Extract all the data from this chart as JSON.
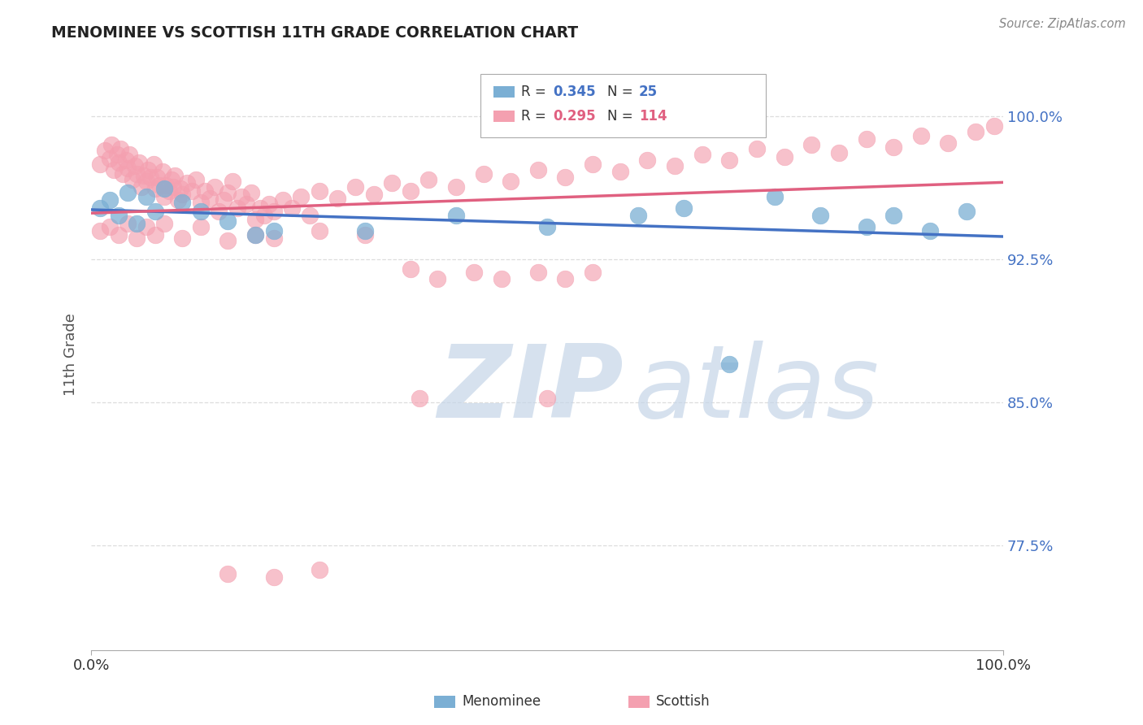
{
  "title": "MENOMINEE VS SCOTTISH 11TH GRADE CORRELATION CHART",
  "source_text": "Source: ZipAtlas.com",
  "ylabel": "11th Grade",
  "xlim": [
    0.0,
    1.0
  ],
  "ylim": [
    0.72,
    1.03
  ],
  "yticks": [
    0.775,
    0.85,
    0.925,
    1.0
  ],
  "ytick_labels": [
    "77.5%",
    "85.0%",
    "92.5%",
    "100.0%"
  ],
  "menominee_R": 0.345,
  "menominee_N": 25,
  "scottish_R": 0.295,
  "scottish_N": 114,
  "menominee_color": "#7BAFD4",
  "scottish_color": "#F4A0B0",
  "menominee_line_color": "#4472C4",
  "scottish_line_color": "#E06080",
  "watermark_zip": "ZIP",
  "watermark_atlas": "atlas",
  "watermark_color_zip": "#C5D5E8",
  "watermark_color_atlas": "#C5D5E8",
  "background_color": "#FFFFFF",
  "grid_color": "#DDDDDD",
  "title_color": "#222222",
  "axis_label_color": "#555555",
  "right_tick_color": "#4472C4",
  "source_color": "#888888",
  "legend_text_color": "#333333",
  "menominee_x": [
    0.01,
    0.02,
    0.03,
    0.04,
    0.05,
    0.06,
    0.07,
    0.08,
    0.1,
    0.12,
    0.15,
    0.18,
    0.2,
    0.3,
    0.4,
    0.5,
    0.6,
    0.65,
    0.7,
    0.75,
    0.8,
    0.85,
    0.88,
    0.92,
    0.96
  ],
  "menominee_y": [
    0.952,
    0.956,
    0.948,
    0.96,
    0.944,
    0.958,
    0.95,
    0.962,
    0.955,
    0.95,
    0.945,
    0.938,
    0.94,
    0.94,
    0.948,
    0.942,
    0.948,
    0.952,
    0.87,
    0.958,
    0.948,
    0.942,
    0.948,
    0.94,
    0.95
  ],
  "scottish_x": [
    0.01,
    0.015,
    0.02,
    0.022,
    0.025,
    0.028,
    0.03,
    0.032,
    0.035,
    0.038,
    0.04,
    0.042,
    0.045,
    0.048,
    0.05,
    0.052,
    0.055,
    0.058,
    0.06,
    0.062,
    0.065,
    0.068,
    0.07,
    0.072,
    0.075,
    0.078,
    0.08,
    0.082,
    0.085,
    0.088,
    0.09,
    0.092,
    0.095,
    0.098,
    0.1,
    0.105,
    0.11,
    0.115,
    0.12,
    0.125,
    0.13,
    0.135,
    0.14,
    0.145,
    0.15,
    0.155,
    0.16,
    0.165,
    0.17,
    0.175,
    0.18,
    0.185,
    0.19,
    0.195,
    0.2,
    0.21,
    0.22,
    0.23,
    0.24,
    0.25,
    0.27,
    0.29,
    0.31,
    0.33,
    0.35,
    0.37,
    0.4,
    0.43,
    0.46,
    0.49,
    0.52,
    0.55,
    0.58,
    0.61,
    0.64,
    0.67,
    0.7,
    0.73,
    0.76,
    0.79,
    0.82,
    0.85,
    0.88,
    0.91,
    0.94,
    0.97,
    0.99,
    0.01,
    0.02,
    0.03,
    0.04,
    0.05,
    0.06,
    0.07,
    0.08,
    0.1,
    0.12,
    0.15,
    0.18,
    0.2,
    0.25,
    0.3,
    0.35,
    0.38,
    0.42,
    0.45,
    0.49,
    0.52,
    0.55,
    0.36,
    0.5,
    0.15,
    0.2,
    0.25
  ],
  "scottish_y": [
    0.975,
    0.982,
    0.978,
    0.985,
    0.972,
    0.98,
    0.976,
    0.983,
    0.97,
    0.977,
    0.973,
    0.98,
    0.967,
    0.974,
    0.97,
    0.976,
    0.963,
    0.969,
    0.966,
    0.972,
    0.968,
    0.975,
    0.962,
    0.968,
    0.964,
    0.971,
    0.958,
    0.964,
    0.961,
    0.967,
    0.963,
    0.969,
    0.956,
    0.962,
    0.959,
    0.965,
    0.961,
    0.967,
    0.955,
    0.961,
    0.957,
    0.963,
    0.95,
    0.956,
    0.96,
    0.966,
    0.952,
    0.958,
    0.954,
    0.96,
    0.946,
    0.952,
    0.948,
    0.954,
    0.95,
    0.956,
    0.952,
    0.958,
    0.948,
    0.961,
    0.957,
    0.963,
    0.959,
    0.965,
    0.961,
    0.967,
    0.963,
    0.97,
    0.966,
    0.972,
    0.968,
    0.975,
    0.971,
    0.977,
    0.974,
    0.98,
    0.977,
    0.983,
    0.979,
    0.985,
    0.981,
    0.988,
    0.984,
    0.99,
    0.986,
    0.992,
    0.995,
    0.94,
    0.942,
    0.938,
    0.944,
    0.936,
    0.942,
    0.938,
    0.944,
    0.936,
    0.942,
    0.935,
    0.938,
    0.936,
    0.94,
    0.938,
    0.92,
    0.915,
    0.918,
    0.915,
    0.918,
    0.915,
    0.918,
    0.852,
    0.852,
    0.76,
    0.758,
    0.762
  ]
}
